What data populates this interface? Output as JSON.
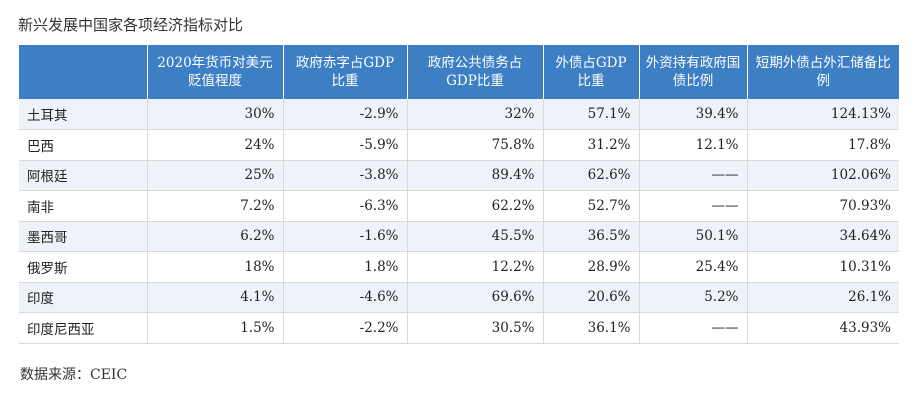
{
  "title": "新兴发展中国家各项经济指标对比",
  "table": {
    "headers": [
      "",
      "2020年货币对美元贬值程度",
      "政府赤字占GDP比重",
      "政府公共债务占GDP比重",
      "外债占GDP比重",
      "外资持有政府国债比例",
      "短期外债占外汇储备比例"
    ],
    "rows": [
      [
        "土耳其",
        "30%",
        "-2.9%",
        "32%",
        "57.1%",
        "39.4%",
        "124.13%"
      ],
      [
        "巴西",
        "24%",
        "-5.9%",
        "75.8%",
        "31.2%",
        "12.1%",
        "17.8%"
      ],
      [
        "阿根廷",
        "25%",
        "-3.8%",
        "89.4%",
        "62.6%",
        "——",
        "102.06%"
      ],
      [
        "南非",
        "7.2%",
        "-6.3%",
        "62.2%",
        "52.7%",
        "——",
        "70.93%"
      ],
      [
        "墨西哥",
        "6.2%",
        "-1.6%",
        "45.5%",
        "36.5%",
        "50.1%",
        "34.64%"
      ],
      [
        "俄罗斯",
        "18%",
        "1.8%",
        "12.2%",
        "28.9%",
        "25.4%",
        "10.31%"
      ],
      [
        "印度",
        "4.1%",
        "-4.6%",
        "69.6%",
        "20.6%",
        "5.2%",
        "26.1%"
      ],
      [
        "印度尼西亚",
        "1.5%",
        "-2.2%",
        "30.5%",
        "36.1%",
        "——",
        "43.93%"
      ]
    ]
  },
  "source": "数据来源：CEIC",
  "colors": {
    "header_bg": "#3d7fc4",
    "stripe_bg": "#eef3f9"
  }
}
